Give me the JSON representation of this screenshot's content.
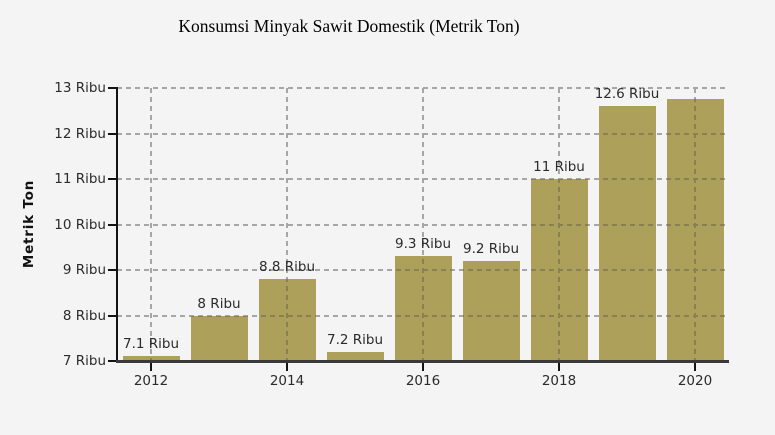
{
  "chart_data": {
    "type": "bar",
    "title": "Konsumsi Minyak Sawit Domestik (Metrik Ton)",
    "ylabel": "Metrik Ton",
    "xlabel": "",
    "categories": [
      "2012",
      "2013",
      "2014",
      "2015",
      "2016",
      "2017",
      "2018",
      "2019",
      "2020"
    ],
    "values": [
      7.1,
      8,
      8.8,
      7.2,
      9.3,
      9.2,
      11,
      12.6,
      12.75
    ],
    "bar_labels": [
      "7.1 Ribu",
      "8 Ribu",
      "8.8 Ribu",
      "7.2 Ribu",
      "9.3 Ribu",
      "9.2 Ribu",
      "11 Ribu",
      "12.6 Ribu",
      ""
    ],
    "ylim": [
      7,
      13
    ],
    "y_ticks": [
      {
        "value": 7,
        "label": "7 Ribu"
      },
      {
        "value": 8,
        "label": "8 Ribu"
      },
      {
        "value": 9,
        "label": "9 Ribu"
      },
      {
        "value": 10,
        "label": "10 Ribu"
      },
      {
        "value": 11,
        "label": "11 Ribu"
      },
      {
        "value": 12,
        "label": "12 Ribu"
      },
      {
        "value": 13,
        "label": "13 Ribu"
      }
    ],
    "x_tick_labels": [
      "2012",
      "2014",
      "2016",
      "2018",
      "2020"
    ],
    "grid": "dashed",
    "legend": "none",
    "colors": {
      "bar": "#aca05a",
      "background": "#f4f4f4",
      "grid": "#d8d8d8",
      "axis_x": "#3a3a3a",
      "axis_y": "#141414",
      "text": "#2b2b2b",
      "title": "#000000"
    }
  }
}
